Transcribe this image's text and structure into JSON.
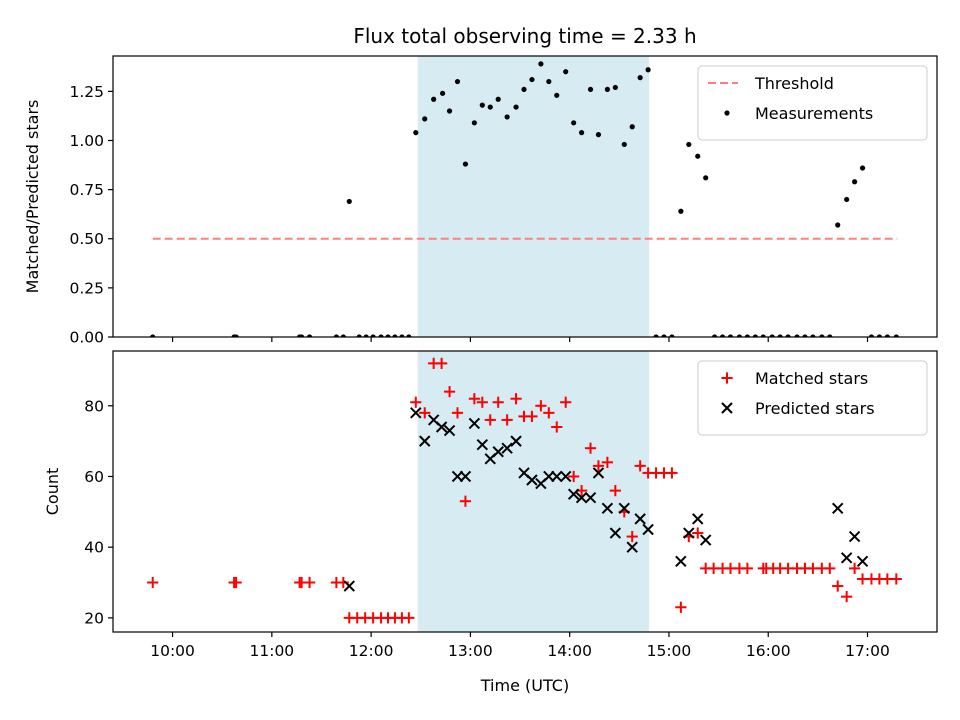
{
  "chart_data": {
    "type": "scatter",
    "title": "Flux total observing time = 2.33 h",
    "xlabel": "Time (UTC)",
    "xlim": [
      9.4,
      17.7
    ],
    "xticks": [
      10,
      11,
      12,
      13,
      14,
      15,
      16,
      17
    ],
    "xtick_labels": [
      "10:00",
      "11:00",
      "12:00",
      "13:00",
      "14:00",
      "15:00",
      "16:00",
      "17:00"
    ],
    "highlight_band": {
      "start": 12.47,
      "end": 14.8,
      "color": "#add8e6"
    },
    "colors": {
      "threshold": "#ff7f7f",
      "measurements": "#000000",
      "matched": "#ff0000",
      "predicted": "#000000",
      "band": "#add8e6"
    },
    "panels": [
      {
        "name": "ratio",
        "ylabel": "Matched/Predicted stars",
        "ylim": [
          0,
          1.43
        ],
        "yticks": [
          0,
          0.25,
          0.5,
          0.75,
          1.0,
          1.25
        ],
        "ytick_labels": [
          "0.00",
          "0.25",
          "0.50",
          "0.75",
          "1.00",
          "1.25"
        ],
        "threshold": {
          "label": "Threshold",
          "value": 0.5,
          "x_range": [
            9.8,
            17.3
          ]
        },
        "series": [
          {
            "name": "Measurements",
            "marker": "dot",
            "points": [
              [
                9.8,
                0
              ],
              [
                10.62,
                0
              ],
              [
                10.64,
                0
              ],
              [
                11.28,
                0
              ],
              [
                11.3,
                0
              ],
              [
                11.38,
                0
              ],
              [
                11.65,
                0
              ],
              [
                11.72,
                0
              ],
              [
                11.78,
                0.69
              ],
              [
                11.88,
                0
              ],
              [
                11.95,
                0
              ],
              [
                12.02,
                0
              ],
              [
                12.1,
                0
              ],
              [
                12.17,
                0
              ],
              [
                12.24,
                0
              ],
              [
                12.31,
                0
              ],
              [
                12.38,
                0
              ],
              [
                12.45,
                1.04
              ],
              [
                12.54,
                1.11
              ],
              [
                12.63,
                1.21
              ],
              [
                12.72,
                1.24
              ],
              [
                12.79,
                1.15
              ],
              [
                12.87,
                1.3
              ],
              [
                12.95,
                0.88
              ],
              [
                13.04,
                1.09
              ],
              [
                13.12,
                1.18
              ],
              [
                13.2,
                1.17
              ],
              [
                13.28,
                1.21
              ],
              [
                13.37,
                1.12
              ],
              [
                13.46,
                1.17
              ],
              [
                13.54,
                1.26
              ],
              [
                13.62,
                1.31
              ],
              [
                13.71,
                1.39
              ],
              [
                13.79,
                1.3
              ],
              [
                13.87,
                1.23
              ],
              [
                13.96,
                1.35
              ],
              [
                14.04,
                1.09
              ],
              [
                14.12,
                1.04
              ],
              [
                14.21,
                1.26
              ],
              [
                14.29,
                1.03
              ],
              [
                14.38,
                1.26
              ],
              [
                14.46,
                1.27
              ],
              [
                14.55,
                0.98
              ],
              [
                14.63,
                1.07
              ],
              [
                14.71,
                1.32
              ],
              [
                14.79,
                1.36
              ],
              [
                14.87,
                0
              ],
              [
                14.95,
                0
              ],
              [
                15.03,
                0
              ],
              [
                15.12,
                0.64
              ],
              [
                15.2,
                0.98
              ],
              [
                15.29,
                0.92
              ],
              [
                15.37,
                0.81
              ],
              [
                15.46,
                0
              ],
              [
                15.54,
                0
              ],
              [
                15.62,
                0
              ],
              [
                15.71,
                0
              ],
              [
                15.79,
                0
              ],
              [
                15.87,
                0
              ],
              [
                15.95,
                0
              ],
              [
                16.04,
                0
              ],
              [
                16.12,
                0
              ],
              [
                16.2,
                0
              ],
              [
                16.29,
                0
              ],
              [
                16.37,
                0
              ],
              [
                16.45,
                0
              ],
              [
                16.54,
                0
              ],
              [
                16.62,
                0
              ],
              [
                16.7,
                0.57
              ],
              [
                16.79,
                0.7
              ],
              [
                16.87,
                0.79
              ],
              [
                16.95,
                0.86
              ],
              [
                17.04,
                0
              ],
              [
                17.12,
                0
              ],
              [
                17.2,
                0
              ],
              [
                17.29,
                0
              ]
            ]
          }
        ]
      },
      {
        "name": "count",
        "ylabel": "Count",
        "ylim": [
          16,
          95.5
        ],
        "yticks": [
          20,
          40,
          60,
          80
        ],
        "ytick_labels": [
          "20",
          "40",
          "60",
          "80"
        ],
        "series": [
          {
            "name": "Matched stars",
            "marker": "plus",
            "points": [
              [
                9.8,
                30
              ],
              [
                10.62,
                30
              ],
              [
                10.64,
                30
              ],
              [
                11.28,
                30
              ],
              [
                11.3,
                30
              ],
              [
                11.38,
                30
              ],
              [
                11.65,
                30
              ],
              [
                11.72,
                30
              ],
              [
                11.78,
                20
              ],
              [
                11.86,
                20
              ],
              [
                11.94,
                20
              ],
              [
                12.02,
                20
              ],
              [
                12.1,
                20
              ],
              [
                12.17,
                20
              ],
              [
                12.24,
                20
              ],
              [
                12.31,
                20
              ],
              [
                12.38,
                20
              ],
              [
                12.45,
                81
              ],
              [
                12.54,
                78
              ],
              [
                12.63,
                92
              ],
              [
                12.71,
                92
              ],
              [
                12.79,
                84
              ],
              [
                12.87,
                78
              ],
              [
                12.95,
                53
              ],
              [
                13.04,
                82
              ],
              [
                13.12,
                81
              ],
              [
                13.2,
                76
              ],
              [
                13.28,
                81
              ],
              [
                13.37,
                76
              ],
              [
                13.46,
                82
              ],
              [
                13.54,
                77
              ],
              [
                13.62,
                77
              ],
              [
                13.71,
                80
              ],
              [
                13.79,
                78
              ],
              [
                13.87,
                74
              ],
              [
                13.96,
                81
              ],
              [
                14.04,
                60
              ],
              [
                14.12,
                56
              ],
              [
                14.21,
                68
              ],
              [
                14.29,
                63
              ],
              [
                14.38,
                64
              ],
              [
                14.46,
                56
              ],
              [
                14.55,
                50
              ],
              [
                14.63,
                43
              ],
              [
                14.71,
                63
              ],
              [
                14.79,
                61
              ],
              [
                14.87,
                61
              ],
              [
                14.95,
                61
              ],
              [
                15.03,
                61
              ],
              [
                15.12,
                23
              ],
              [
                15.2,
                43
              ],
              [
                15.29,
                44
              ],
              [
                15.37,
                34
              ],
              [
                15.45,
                34
              ],
              [
                15.54,
                34
              ],
              [
                15.62,
                34
              ],
              [
                15.71,
                34
              ],
              [
                15.79,
                34
              ],
              [
                15.95,
                34
              ],
              [
                15.98,
                34
              ],
              [
                16.05,
                34
              ],
              [
                16.12,
                34
              ],
              [
                16.2,
                34
              ],
              [
                16.29,
                34
              ],
              [
                16.37,
                34
              ],
              [
                16.45,
                34
              ],
              [
                16.54,
                34
              ],
              [
                16.62,
                34
              ],
              [
                16.7,
                29
              ],
              [
                16.79,
                26
              ],
              [
                16.87,
                34
              ],
              [
                16.95,
                31
              ],
              [
                17.04,
                31
              ],
              [
                17.12,
                31
              ],
              [
                17.2,
                31
              ],
              [
                17.29,
                31
              ]
            ]
          },
          {
            "name": "Predicted stars",
            "marker": "x",
            "points": [
              [
                11.78,
                29
              ],
              [
                12.45,
                78
              ],
              [
                12.54,
                70
              ],
              [
                12.63,
                76
              ],
              [
                12.71,
                74
              ],
              [
                12.79,
                73
              ],
              [
                12.87,
                60
              ],
              [
                12.95,
                60
              ],
              [
                13.04,
                75
              ],
              [
                13.12,
                69
              ],
              [
                13.2,
                65
              ],
              [
                13.28,
                67
              ],
              [
                13.37,
                68
              ],
              [
                13.46,
                70
              ],
              [
                13.54,
                61
              ],
              [
                13.62,
                59
              ],
              [
                13.71,
                58
              ],
              [
                13.79,
                60
              ],
              [
                13.87,
                60
              ],
              [
                13.96,
                60
              ],
              [
                14.04,
                55
              ],
              [
                14.12,
                54
              ],
              [
                14.21,
                54
              ],
              [
                14.29,
                61
              ],
              [
                14.38,
                51
              ],
              [
                14.46,
                44
              ],
              [
                14.55,
                51
              ],
              [
                14.63,
                40
              ],
              [
                14.71,
                48
              ],
              [
                14.79,
                45
              ],
              [
                15.12,
                36
              ],
              [
                15.2,
                44
              ],
              [
                15.29,
                48
              ],
              [
                15.37,
                42
              ],
              [
                16.7,
                51
              ],
              [
                16.79,
                37
              ],
              [
                16.87,
                43
              ],
              [
                16.95,
                36
              ]
            ]
          }
        ]
      }
    ]
  }
}
